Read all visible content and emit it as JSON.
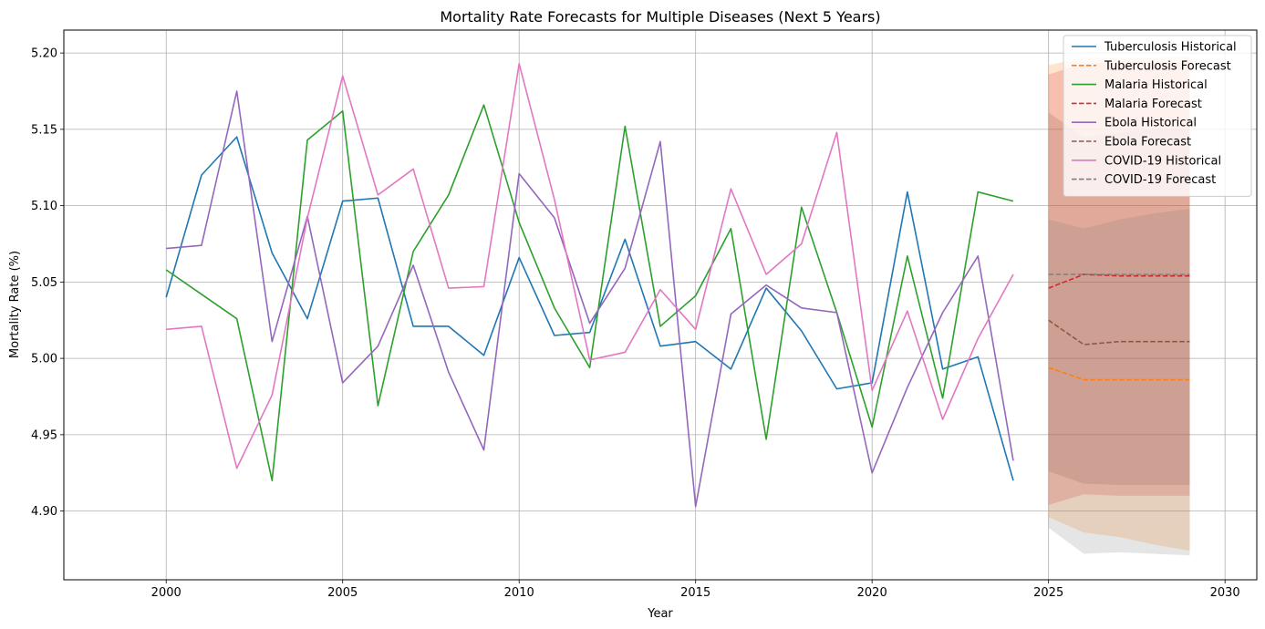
{
  "chart_data": {
    "type": "line",
    "title": "Mortality Rate Forecasts for Multiple Diseases (Next 5 Years)",
    "xlabel": "Year",
    "ylabel": "Mortality Rate (%)",
    "xlim": [
      1997.1,
      2030.9
    ],
    "ylim": [
      4.855,
      5.215
    ],
    "xticks": [
      2000,
      2005,
      2010,
      2015,
      2020,
      2025,
      2030
    ],
    "yticks": [
      4.9,
      4.95,
      5.0,
      5.05,
      5.1,
      5.15,
      5.2
    ],
    "xtick_labels": [
      "2000",
      "2005",
      "2010",
      "2015",
      "2020",
      "2025",
      "2030"
    ],
    "ytick_labels": [
      "4.90",
      "4.95",
      "5.00",
      "5.05",
      "5.10",
      "5.15",
      "5.20"
    ],
    "grid": true,
    "legend_position": "top-right",
    "historical_x": [
      2000,
      2001,
      2002,
      2003,
      2004,
      2005,
      2006,
      2007,
      2008,
      2009,
      2010,
      2011,
      2012,
      2013,
      2014,
      2015,
      2016,
      2017,
      2018,
      2019,
      2020,
      2021,
      2022,
      2023,
      2024
    ],
    "forecast_x": [
      2025,
      2026,
      2027,
      2028,
      2029
    ],
    "series": [
      {
        "name": "Tuberculosis Historical",
        "kind": "historical",
        "color": "#1f77b4",
        "values": [
          5.04,
          5.12,
          5.145,
          5.069,
          5.026,
          5.103,
          5.105,
          5.021,
          5.021,
          5.002,
          5.066,
          5.015,
          5.017,
          5.078,
          5.008,
          5.011,
          4.993,
          5.046,
          5.018,
          4.98,
          4.984,
          5.109,
          4.993,
          5.001,
          4.92
        ]
      },
      {
        "name": "Tuberculosis Forecast",
        "kind": "forecast",
        "color": "#ff7f0e",
        "values": [
          4.994,
          4.986,
          4.986,
          4.986,
          4.986
        ],
        "ci_lower": [
          4.896,
          4.886,
          4.883,
          4.878,
          4.874
        ],
        "ci_upper": [
          5.192,
          5.197,
          5.197,
          5.197,
          5.198
        ]
      },
      {
        "name": "Malaria Historical",
        "kind": "historical",
        "color": "#2ca02c",
        "values": [
          5.058,
          5.042,
          5.026,
          4.92,
          5.143,
          5.162,
          4.969,
          5.07,
          5.107,
          5.166,
          5.089,
          5.033,
          4.994,
          5.152,
          5.021,
          5.041,
          5.085,
          4.947,
          5.099,
          5.03,
          4.955,
          5.067,
          4.974,
          5.109,
          5.103
        ]
      },
      {
        "name": "Malaria Forecast",
        "kind": "forecast",
        "color": "#d62728",
        "values": [
          5.046,
          5.055,
          5.054,
          5.054,
          5.054
        ],
        "ci_lower": [
          4.904,
          4.911,
          4.91,
          4.91,
          4.91
        ],
        "ci_upper": [
          5.186,
          5.193,
          5.194,
          5.194,
          5.194
        ]
      },
      {
        "name": "Ebola Historical",
        "kind": "historical",
        "color": "#9467bd",
        "values": [
          5.072,
          5.074,
          5.175,
          5.011,
          5.093,
          4.984,
          5.008,
          5.061,
          4.991,
          4.94,
          5.121,
          5.092,
          5.023,
          5.059,
          5.142,
          4.903,
          5.029,
          5.048,
          5.033,
          5.03,
          4.925,
          4.981,
          5.03,
          5.067,
          4.933
        ]
      },
      {
        "name": "Ebola Forecast",
        "kind": "forecast",
        "color": "#8c564b",
        "values": [
          5.025,
          5.009,
          5.011,
          5.011,
          5.011
        ],
        "ci_lower": [
          4.926,
          4.918,
          4.917,
          4.917,
          4.917
        ],
        "ci_upper": [
          5.161,
          5.145,
          5.148,
          5.15,
          5.15
        ]
      },
      {
        "name": "COVID-19 Historical",
        "kind": "historical",
        "color": "#e377c2",
        "values": [
          5.019,
          5.021,
          4.928,
          4.976,
          5.092,
          5.185,
          5.107,
          5.124,
          5.046,
          5.047,
          5.193,
          5.104,
          4.999,
          5.004,
          5.045,
          5.019,
          5.111,
          5.055,
          5.075,
          5.148,
          4.979,
          5.031,
          4.96,
          5.013,
          5.055
        ]
      },
      {
        "name": "COVID-19 Forecast",
        "kind": "forecast",
        "color": "#7f7f7f",
        "values": [
          5.055,
          5.055,
          5.055,
          5.055,
          5.055
        ],
        "ci_lower": [
          4.889,
          4.872,
          4.873,
          4.872,
          4.871
        ],
        "ci_upper": [
          5.091,
          5.085,
          5.091,
          5.095,
          5.098
        ]
      }
    ]
  }
}
